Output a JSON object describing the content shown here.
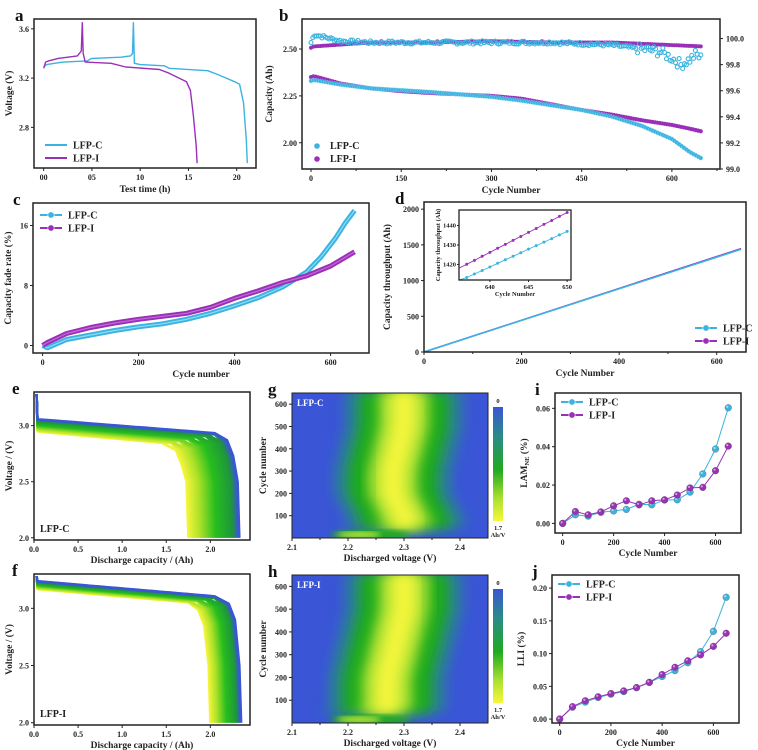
{
  "colors": {
    "lfp_c": "#3bb3e0",
    "lfp_i": "#9a2fb8",
    "heat_low": "#3a55d6",
    "heat_mid": "#1faa1f",
    "heat_high": "#f7f73a"
  },
  "chart_data": [
    {
      "panel": "a",
      "type": "line",
      "xlabel": "Test time (h)",
      "ylabel": "Voltage (V)",
      "xlim": [
        -1,
        22
      ],
      "ylim": [
        2.47,
        3.68
      ],
      "xticks": [
        "00",
        "05",
        "10",
        "15",
        "20"
      ],
      "xtick_values": [
        0,
        5,
        10,
        15,
        20
      ],
      "yticks": [
        "2.8",
        "3.2",
        "3.6"
      ],
      "ytick_values": [
        2.8,
        3.2,
        3.6
      ],
      "legend": [
        "LFP-C",
        "LFP-I"
      ],
      "legend_position": "bottom-left",
      "series": [
        {
          "name": "LFP-C",
          "x": [
            0,
            0.3,
            2,
            4.5,
            5,
            8,
            9,
            9.2,
            9.3,
            9.4,
            10,
            12.5,
            13,
            17,
            18,
            19.8,
            20.3,
            20.7,
            21,
            21.1
          ],
          "y": [
            3.29,
            3.31,
            3.33,
            3.34,
            3.36,
            3.37,
            3.38,
            3.4,
            3.65,
            3.32,
            3.31,
            3.3,
            3.28,
            3.26,
            3.23,
            3.17,
            3.15,
            3.0,
            2.7,
            2.51
          ]
        },
        {
          "name": "LFP-I",
          "x": [
            0,
            0.2,
            0.5,
            1.5,
            3.5,
            3.9,
            4.0,
            4.1,
            4.3,
            7,
            8.5,
            12,
            13,
            14.8,
            15.2,
            15.5,
            15.8,
            15.9
          ],
          "y": [
            3.28,
            3.33,
            3.34,
            3.36,
            3.38,
            3.42,
            3.65,
            3.4,
            3.33,
            3.32,
            3.29,
            3.27,
            3.24,
            3.17,
            3.1,
            2.9,
            2.65,
            2.51
          ]
        }
      ]
    },
    {
      "panel": "b",
      "type": "scatter",
      "xlabel": "Cycle Number",
      "ylabel": "Capacity (Ah)",
      "y2label": "Coulombic efficiency (%)",
      "xlim": [
        -15,
        680
      ],
      "ylim": [
        1.86,
        2.66
      ],
      "y2lim": [
        99.0,
        100.15
      ],
      "xticks": [
        "0",
        "150",
        "300",
        "450",
        "600"
      ],
      "xtick_values": [
        0,
        150,
        300,
        450,
        600
      ],
      "yticks": [
        "2.00",
        "2.25",
        "2.50"
      ],
      "ytick_values": [
        2.0,
        2.25,
        2.5
      ],
      "y2ticks": [
        "99.0",
        "99.2",
        "99.4",
        "99.6",
        "99.8",
        "100.0"
      ],
      "y2tick_values": [
        99.0,
        99.2,
        99.4,
        99.6,
        99.8,
        100.0
      ],
      "legend": [
        "LFP-C",
        "LFP-I"
      ],
      "legend_position": "bottom-left",
      "series": [
        {
          "name": "LFP-C capacity",
          "x": [
            0,
            5,
            50,
            100,
            150,
            200,
            300,
            350,
            400,
            450,
            500,
            550,
            600,
            630,
            650
          ],
          "y": [
            2.33,
            2.335,
            2.31,
            2.29,
            2.28,
            2.27,
            2.245,
            2.225,
            2.2,
            2.175,
            2.14,
            2.09,
            2.02,
            1.95,
            1.915
          ]
        },
        {
          "name": "LFP-I capacity",
          "x": [
            0,
            5,
            50,
            100,
            150,
            200,
            300,
            350,
            400,
            450,
            500,
            550,
            600,
            630,
            650
          ],
          "y": [
            2.35,
            2.355,
            2.315,
            2.29,
            2.275,
            2.265,
            2.25,
            2.235,
            2.205,
            2.175,
            2.15,
            2.12,
            2.095,
            2.075,
            2.06
          ]
        },
        {
          "name": "LFP-C CE",
          "x": [
            0,
            5,
            50,
            100,
            200,
            300,
            400,
            450,
            500,
            550,
            580,
            600,
            615,
            630,
            640,
            650
          ],
          "y": [
            99.97,
            100.03,
            99.98,
            99.97,
            99.97,
            99.97,
            99.97,
            99.96,
            99.95,
            99.92,
            99.9,
            99.85,
            99.8,
            99.84,
            99.88,
            99.84
          ]
        },
        {
          "name": "LFP-I CE",
          "x": [
            0,
            5,
            100,
            200,
            300,
            400,
            500,
            550,
            600,
            650
          ],
          "y": [
            99.93,
            99.94,
            99.97,
            99.97,
            99.98,
            99.97,
            99.97,
            99.96,
            99.95,
            99.94
          ]
        }
      ]
    },
    {
      "panel": "c",
      "type": "line",
      "xlabel": "Cycle number",
      "ylabel": "Capacity fade rate (%)",
      "xlim": [
        -20,
        680
      ],
      "ylim": [
        -1,
        19
      ],
      "xticks": [
        "0",
        "200",
        "400",
        "600"
      ],
      "xtick_values": [
        0,
        200,
        400,
        600
      ],
      "yticks": [
        "0",
        "8",
        "16"
      ],
      "ytick_values": [
        0,
        8,
        16
      ],
      "legend": [
        "LFP-C",
        "LFP-I"
      ],
      "legend_position": "top-left",
      "series": [
        {
          "name": "LFP-C",
          "x": [
            0,
            10,
            50,
            100,
            150,
            200,
            250,
            300,
            350,
            400,
            450,
            500,
            550,
            580,
            610,
            630,
            650
          ],
          "y": [
            0,
            -0.3,
            0.8,
            1.4,
            2.0,
            2.5,
            2.9,
            3.5,
            4.3,
            5.3,
            6.4,
            7.8,
            9.8,
            11.8,
            14.3,
            16.3,
            18.0
          ]
        },
        {
          "name": "LFP-I",
          "x": [
            0,
            10,
            50,
            100,
            150,
            200,
            250,
            300,
            350,
            400,
            450,
            500,
            550,
            600,
            650
          ],
          "y": [
            0,
            0.4,
            1.6,
            2.4,
            3.0,
            3.5,
            3.9,
            4.3,
            5.1,
            6.3,
            7.3,
            8.4,
            9.3,
            10.6,
            12.5
          ]
        }
      ]
    },
    {
      "panel": "d",
      "type": "line",
      "xlabel": "Cycle Number",
      "ylabel": "Capacity throughput (Ah)",
      "xlim": [
        0,
        660
      ],
      "ylim": [
        0,
        2100
      ],
      "xticks": [
        "0",
        "200",
        "400",
        "600"
      ],
      "xtick_values": [
        0,
        200,
        400,
        600
      ],
      "yticks": [
        "0",
        "500",
        "1000",
        "1500",
        "2000"
      ],
      "ytick_values": [
        0,
        500,
        1000,
        1500,
        2000
      ],
      "legend": [
        "LFP-C",
        "LFP-I"
      ],
      "legend_position": "bottom-right",
      "series": [
        {
          "name": "LFP-C",
          "x": [
            0,
            650
          ],
          "y": [
            0,
            1438
          ]
        },
        {
          "name": "LFP-I",
          "x": [
            0,
            650
          ],
          "y": [
            0,
            1447
          ]
        }
      ],
      "inset": {
        "xlabel": "Cycle Number",
        "ylabel": "Capacity throughput (Ah)",
        "xlim": [
          636,
          650.5
        ],
        "ylim": [
          1412,
          1448
        ],
        "xticks": [
          "640",
          "645",
          "650"
        ],
        "xtick_values": [
          640,
          645,
          650
        ],
        "yticks": [
          "1420",
          "1430",
          "1440"
        ],
        "ytick_values": [
          1420,
          1430,
          1440
        ],
        "series": [
          {
            "name": "LFP-C",
            "x": [
              637,
              638,
              639,
              640,
              641,
              642,
              643,
              644,
              645,
              646,
              647,
              648,
              649,
              650
            ],
            "y": [
              1413.3,
              1415.1,
              1416.9,
              1418.7,
              1420.6,
              1422.4,
              1424.2,
              1426.0,
              1427.9,
              1429.7,
              1431.5,
              1433.3,
              1435.2,
              1437.0
            ]
          },
          {
            "name": "LFP-I",
            "x": [
              637,
              638,
              639,
              640,
              641,
              642,
              643,
              644,
              645,
              646,
              647,
              648,
              649,
              650
            ],
            "y": [
              1420.1,
              1422.1,
              1424.2,
              1426.2,
              1428.3,
              1430.3,
              1432.4,
              1434.4,
              1436.5,
              1438.5,
              1440.6,
              1442.6,
              1444.7,
              1446.7
            ]
          }
        ]
      }
    },
    {
      "panel": "e",
      "type": "line",
      "xlabel": "Discharge capacity / (Ah)",
      "ylabel": "Voltage / (V)",
      "xlim": [
        0,
        2.45
      ],
      "ylim": [
        1.98,
        3.3
      ],
      "xticks": [
        "0.0",
        "0.5",
        "1.0",
        "1.5",
        "2.0"
      ],
      "xtick_values": [
        0,
        0.5,
        1.0,
        1.5,
        2.0
      ],
      "yticks": [
        "2.0",
        "2.5",
        "3.0"
      ],
      "ytick_values": [
        2.0,
        2.5,
        3.0
      ],
      "annotation": "LFP-C",
      "colormap": "blue (early cycles) to green to yellow (late cycles)",
      "first_cycle_end_capacity": 2.33,
      "last_cycle_end_capacity": 1.75
    },
    {
      "panel": "f",
      "type": "line",
      "xlabel": "Discharge capacity / (Ah)",
      "ylabel": "Voltage / (V)",
      "xlim": [
        0,
        2.45
      ],
      "ylim": [
        1.98,
        3.3
      ],
      "xticks": [
        "0.0",
        "0.5",
        "1.0",
        "1.5",
        "2.0"
      ],
      "xtick_values": [
        0,
        0.5,
        1.0,
        1.5,
        2.0
      ],
      "yticks": [
        "2.0",
        "2.5",
        "3.0"
      ],
      "ytick_values": [
        2.0,
        2.5,
        3.0
      ],
      "annotation": "LFP-I",
      "colormap": "blue (early cycles) to green to yellow (late cycles)",
      "first_cycle_end_capacity": 2.35,
      "last_cycle_end_capacity": 2.0
    },
    {
      "panel": "g",
      "type": "heatmap",
      "xlabel": "Discharged voltage (V)",
      "ylabel": "Cycle number",
      "xlim": [
        2.1,
        2.45
      ],
      "ylim": [
        0,
        650
      ],
      "xticks": [
        "2.1",
        "2.2",
        "2.3",
        "2.4"
      ],
      "xtick_values": [
        2.1,
        2.2,
        2.3,
        2.4
      ],
      "yticks": [
        "100",
        "200",
        "300",
        "400",
        "500",
        "600"
      ],
      "ytick_values": [
        100,
        200,
        300,
        400,
        500,
        600
      ],
      "annotation": "LFP-C",
      "colorbar": {
        "min_label": "0",
        "max_label": "1.7",
        "unit": "Ah/V"
      },
      "peak_voltage_by_cycle": {
        "cycles": [
          10,
          50,
          100,
          200,
          300,
          400,
          500,
          600
        ],
        "voltage": [
          2.2,
          2.31,
          2.3,
          2.28,
          2.28,
          2.29,
          2.3,
          2.3
        ]
      }
    },
    {
      "panel": "h",
      "type": "heatmap",
      "xlabel": "Discharged voltage (V)",
      "ylabel": "Cycle number",
      "xlim": [
        2.1,
        2.45
      ],
      "ylim": [
        0,
        650
      ],
      "xticks": [
        "2.1",
        "2.2",
        "2.3",
        "2.4"
      ],
      "xtick_values": [
        2.1,
        2.2,
        2.3,
        2.4
      ],
      "yticks": [
        "100",
        "200",
        "300",
        "400",
        "500",
        "600"
      ],
      "ytick_values": [
        100,
        200,
        300,
        400,
        500,
        600
      ],
      "annotation": "LFP-I",
      "colorbar": {
        "min_label": "0",
        "max_label": "1.7",
        "unit": "Ah/V"
      },
      "peak_voltage_by_cycle": {
        "cycles": [
          10,
          50,
          100,
          200,
          300,
          400,
          500,
          600
        ],
        "voltage": [
          2.2,
          2.27,
          2.27,
          2.27,
          2.28,
          2.29,
          2.3,
          2.3
        ]
      }
    },
    {
      "panel": "i",
      "type": "line",
      "xlabel": "Cycle Number",
      "ylabel": "LAM_NE (%)",
      "ylabel_main": "LAM",
      "ylabel_sub": "NE",
      "ylabel_unit": " (%)",
      "xlim": [
        -30,
        700
      ],
      "ylim": [
        -0.005,
        0.068
      ],
      "xticks": [
        "0",
        "200",
        "400",
        "600"
      ],
      "xtick_values": [
        0,
        200,
        400,
        600
      ],
      "yticks": [
        "0.00",
        "0.02",
        "0.04",
        "0.06"
      ],
      "ytick_values": [
        0,
        0.02,
        0.04,
        0.06
      ],
      "legend": [
        "LFP-C",
        "LFP-I"
      ],
      "legend_position": "top-left",
      "x": [
        0,
        50,
        100,
        150,
        200,
        250,
        300,
        350,
        400,
        450,
        500,
        550,
        600,
        650
      ],
      "series": [
        {
          "name": "LFP-C",
          "values": [
            0.0,
            0.0045,
            0.0038,
            0.0058,
            0.0065,
            0.0073,
            0.01,
            0.0097,
            0.0122,
            0.0123,
            0.0163,
            0.0258,
            0.0388,
            0.0603
          ]
        },
        {
          "name": "LFP-I",
          "values": [
            0.0,
            0.0062,
            0.0045,
            0.006,
            0.0092,
            0.0118,
            0.0097,
            0.0118,
            0.0123,
            0.0148,
            0.0185,
            0.0188,
            0.0275,
            0.0403
          ]
        }
      ]
    },
    {
      "panel": "j",
      "type": "line",
      "xlabel": "Cycle Number",
      "ylabel": "LLI (%)",
      "xlim": [
        -30,
        700
      ],
      "ylim": [
        -0.006,
        0.22
      ],
      "xticks": [
        "0",
        "200",
        "400",
        "600"
      ],
      "xtick_values": [
        0,
        200,
        400,
        600
      ],
      "yticks": [
        "0.00",
        "0.05",
        "0.10",
        "0.15",
        "0.20"
      ],
      "ytick_values": [
        0,
        0.05,
        0.1,
        0.15,
        0.2
      ],
      "legend": [
        "LFP-C",
        "LFP-I"
      ],
      "legend_position": "top-left",
      "x": [
        0,
        50,
        100,
        150,
        200,
        250,
        300,
        350,
        400,
        450,
        500,
        550,
        600,
        650
      ],
      "series": [
        {
          "name": "LFP-C",
          "values": [
            0.0,
            0.018,
            0.026,
            0.033,
            0.038,
            0.042,
            0.048,
            0.056,
            0.065,
            0.074,
            0.086,
            0.103,
            0.134,
            0.186
          ]
        },
        {
          "name": "LFP-I",
          "values": [
            0.0,
            0.019,
            0.028,
            0.034,
            0.039,
            0.043,
            0.048,
            0.056,
            0.068,
            0.079,
            0.089,
            0.098,
            0.111,
            0.131
          ]
        }
      ]
    }
  ]
}
